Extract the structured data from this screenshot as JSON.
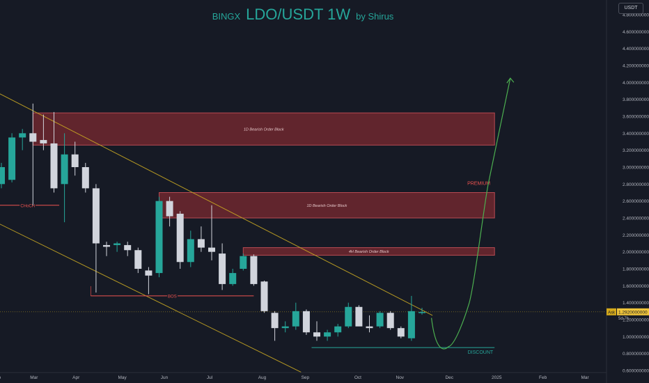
{
  "title": {
    "exchange": "BINGX",
    "symbol": "LDO/USDT 1W",
    "author": "by Shirus"
  },
  "unit_badge": "USDT",
  "colors": {
    "background": "#161a25",
    "up": "#26a69a",
    "down": "#d1d4dc",
    "order_block": "#7e2a31",
    "order_block_border": "#b84a52",
    "trendline": "#c8a722",
    "projection": "#4caf50",
    "zone_label": "#ef5350",
    "discount_label": "#26a69a"
  },
  "chart_data": {
    "type": "candlestick",
    "ylim": [
      0.6,
      4.8
    ],
    "y_ticks": [
      "4.8000000000",
      "4.6000000000",
      "4.4000000000",
      "4.2000000000",
      "4.0000000000",
      "3.8000000000",
      "3.6000000000",
      "3.4000000000",
      "3.2000000000",
      "3.0000000000",
      "2.8000000000",
      "2.6000000000",
      "2.4000000000",
      "2.2000000000",
      "2.0000000000",
      "1.8000000000",
      "1.6000000000",
      "1.4000000000",
      "1.2000000000",
      "1.0000000000",
      "0.8000000000",
      "0.6000000000"
    ],
    "x_ticks": [
      {
        "label": "eb",
        "i": -0.3
      },
      {
        "label": "Mar",
        "i": 3.1
      },
      {
        "label": "Apr",
        "i": 7.1
      },
      {
        "label": "May",
        "i": 11.5
      },
      {
        "label": "Jun",
        "i": 15.5
      },
      {
        "label": "Jul",
        "i": 19.8
      },
      {
        "label": "Aug",
        "i": 24.8
      },
      {
        "label": "Sep",
        "i": 28.9
      },
      {
        "label": "Oct",
        "i": 33.9
      },
      {
        "label": "Nov",
        "i": 37.9
      },
      {
        "label": "Dec",
        "i": 42.6
      },
      {
        "label": "2025",
        "i": 47.1
      },
      {
        "label": "Feb",
        "i": 51.5
      },
      {
        "label": "Mar",
        "i": 55.5
      }
    ],
    "candles": [
      {
        "o": 2.8,
        "h": 3.05,
        "l": 2.75,
        "c": 3.0
      },
      {
        "o": 2.85,
        "h": 3.4,
        "l": 2.82,
        "c": 3.35
      },
      {
        "o": 3.35,
        "h": 3.45,
        "l": 3.2,
        "c": 3.4
      },
      {
        "o": 3.4,
        "h": 3.75,
        "l": 2.55,
        "c": 3.3
      },
      {
        "o": 3.32,
        "h": 3.62,
        "l": 3.2,
        "c": 3.28
      },
      {
        "o": 3.28,
        "h": 3.65,
        "l": 2.7,
        "c": 2.75
      },
      {
        "o": 2.8,
        "h": 3.4,
        "l": 2.35,
        "c": 3.15
      },
      {
        "o": 3.15,
        "h": 3.3,
        "l": 2.9,
        "c": 3.0
      },
      {
        "o": 3.0,
        "h": 3.05,
        "l": 2.7,
        "c": 2.75
      },
      {
        "o": 2.75,
        "h": 2.8,
        "l": 1.52,
        "c": 2.1
      },
      {
        "o": 2.08,
        "h": 2.12,
        "l": 1.95,
        "c": 2.06
      },
      {
        "o": 2.08,
        "h": 2.12,
        "l": 2.0,
        "c": 2.1
      },
      {
        "o": 2.08,
        "h": 2.12,
        "l": 1.95,
        "c": 2.02
      },
      {
        "o": 2.02,
        "h": 2.05,
        "l": 1.75,
        "c": 1.8
      },
      {
        "o": 1.78,
        "h": 1.82,
        "l": 1.5,
        "c": 1.72
      },
      {
        "o": 1.75,
        "h": 2.65,
        "l": 1.7,
        "c": 2.6
      },
      {
        "o": 2.6,
        "h": 2.65,
        "l": 2.3,
        "c": 2.42
      },
      {
        "o": 2.45,
        "h": 2.48,
        "l": 1.8,
        "c": 1.88
      },
      {
        "o": 1.88,
        "h": 2.25,
        "l": 1.82,
        "c": 2.15
      },
      {
        "o": 2.15,
        "h": 2.3,
        "l": 2.0,
        "c": 2.05
      },
      {
        "o": 2.05,
        "h": 2.55,
        "l": 1.9,
        "c": 2.0
      },
      {
        "o": 1.98,
        "h": 2.1,
        "l": 1.55,
        "c": 1.62
      },
      {
        "o": 1.62,
        "h": 1.8,
        "l": 1.6,
        "c": 1.75
      },
      {
        "o": 1.8,
        "h": 1.98,
        "l": 1.78,
        "c": 1.95
      },
      {
        "o": 1.95,
        "h": 1.97,
        "l": 1.6,
        "c": 1.62
      },
      {
        "o": 1.65,
        "h": 1.66,
        "l": 1.28,
        "c": 1.3
      },
      {
        "o": 1.28,
        "h": 1.3,
        "l": 0.95,
        "c": 1.1
      },
      {
        "o": 1.1,
        "h": 1.18,
        "l": 1.05,
        "c": 1.12
      },
      {
        "o": 1.12,
        "h": 1.4,
        "l": 1.08,
        "c": 1.3
      },
      {
        "o": 1.3,
        "h": 1.32,
        "l": 1.02,
        "c": 1.05
      },
      {
        "o": 1.05,
        "h": 1.18,
        "l": 0.95,
        "c": 1.0
      },
      {
        "o": 1.0,
        "h": 1.08,
        "l": 0.95,
        "c": 1.05
      },
      {
        "o": 1.05,
        "h": 1.15,
        "l": 1.0,
        "c": 1.12
      },
      {
        "o": 1.12,
        "h": 1.4,
        "l": 1.1,
        "c": 1.35
      },
      {
        "o": 1.35,
        "h": 1.37,
        "l": 1.15,
        "c": 1.12
      },
      {
        "o": 1.12,
        "h": 1.25,
        "l": 1.05,
        "c": 1.1
      },
      {
        "o": 1.12,
        "h": 1.3,
        "l": 1.1,
        "c": 1.28
      },
      {
        "o": 1.28,
        "h": 1.3,
        "l": 1.08,
        "c": 1.1
      },
      {
        "o": 1.1,
        "h": 1.12,
        "l": 0.98,
        "c": 1.0
      },
      {
        "o": 0.98,
        "h": 1.48,
        "l": 0.95,
        "c": 1.3
      },
      {
        "o": 1.29,
        "h": 1.34,
        "l": 1.26,
        "c": 1.29
      }
    ],
    "zones": [
      {
        "label": "1D Bearish Order Block",
        "i0": 3,
        "i1": 46.9,
        "top": 3.64,
        "bottom": 3.26
      },
      {
        "label": "1D Bearish Order Block",
        "i0": 15,
        "i1": 46.9,
        "top": 2.7,
        "bottom": 2.4
      },
      {
        "label": "4H Bearish Order Block",
        "i0": 23,
        "i1": 46.9,
        "top": 2.05,
        "bottom": 1.96
      }
    ],
    "levels": [
      {
        "label": "CHoCH",
        "i0": -0.5,
        "i1": 5.5,
        "y": 2.55,
        "color": "#ef5350"
      },
      {
        "label": "BOS",
        "i0": 8.5,
        "i1": 24.0,
        "y": 1.48,
        "color": "#ef5350"
      },
      {
        "label": "DISCOUNT",
        "i0": 29.5,
        "i1": 46.9,
        "y": 0.87,
        "color": "#26a69a"
      }
    ],
    "premium": {
      "label": "PREMIUM",
      "i": 46.5,
      "y": 2.79
    },
    "trendlines": [
      {
        "i0": -1.0,
        "y0": 3.92,
        "i1": 41.0,
        "y1": 1.25
      },
      {
        "i0": -1.0,
        "y0": 2.38,
        "i1": 28.5,
        "y1": 0.58
      }
    ],
    "projection": [
      {
        "i": 40.9,
        "y": 1.22
      },
      {
        "i": 42.5,
        "y": 0.88
      },
      {
        "i": 44.5,
        "y": 1.4
      },
      {
        "i": 46.3,
        "y": 2.8
      },
      {
        "i": 48.4,
        "y": 4.05
      }
    ],
    "last_price": {
      "value": 1.292,
      "label": "1.2920000000",
      "tag": "Ask",
      "countdown": "5d 7h"
    }
  }
}
